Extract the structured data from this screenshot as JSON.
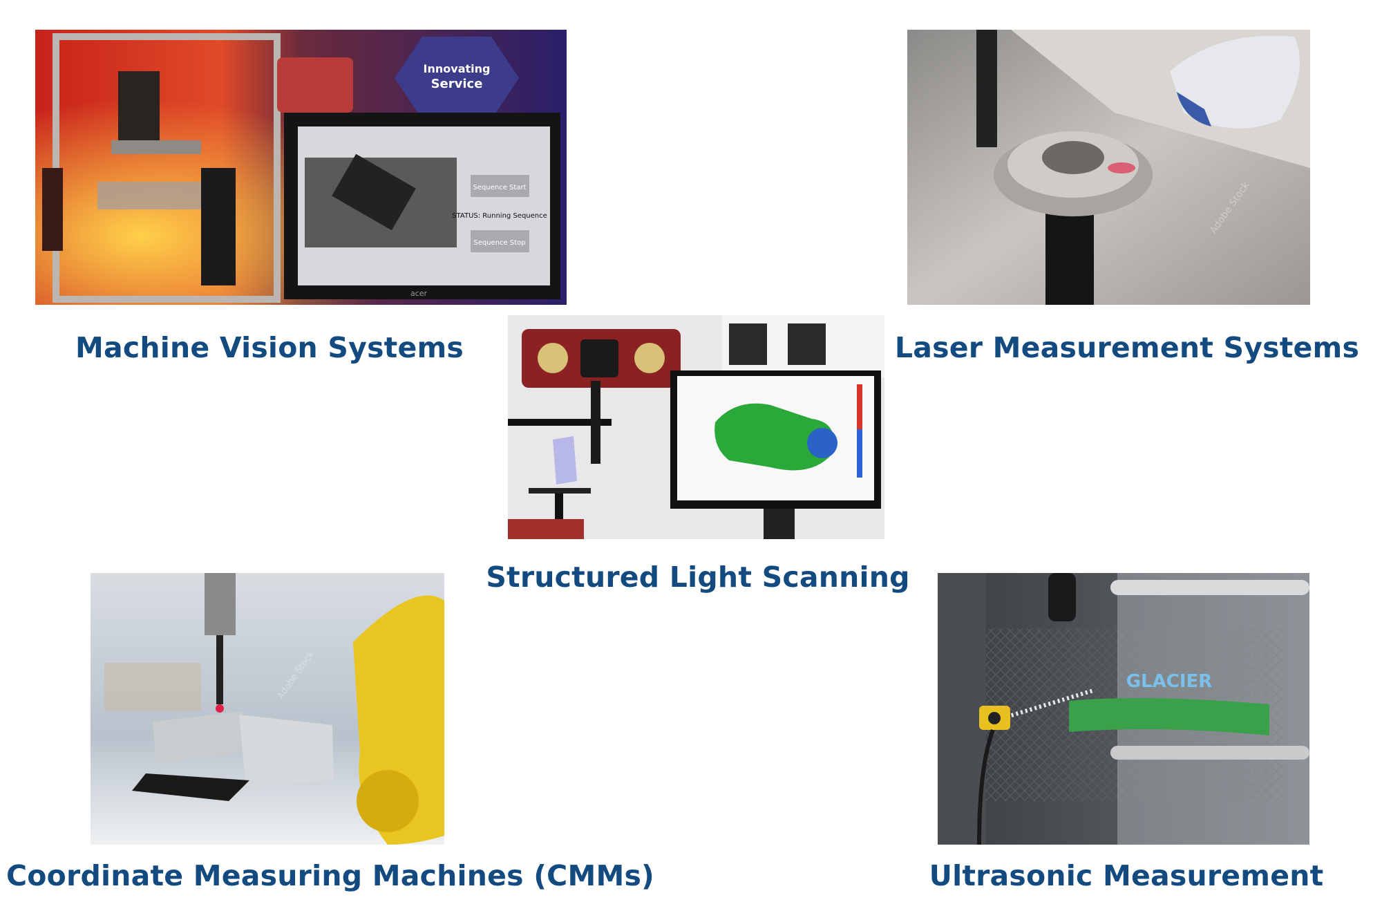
{
  "items": [
    {
      "caption": "Machine Vision Systems",
      "image": "machine-vision-system-photo",
      "screen": {
        "button_start": "Sequence Start",
        "status": "STATUS: Running Sequence",
        "button_stop": "Sequence Stop",
        "monitor_brand": "acer"
      },
      "poster": {
        "title": "Innovating",
        "subtitle": "Service"
      }
    },
    {
      "caption": "Laser Measurement Systems",
      "image": "laser-scanner-gear-photo",
      "watermark": "Adobe Stock"
    },
    {
      "caption": "Structured Light Scanning",
      "image": "structured-light-scanner-photo"
    },
    {
      "caption": "Coordinate Measuring Machines (CMMs)",
      "image": "cmm-probe-robot-arm-photo",
      "watermark": "Adobe Stock"
    },
    {
      "caption": "Ultrasonic Measurement",
      "image": "ultrasonic-sensor-film-photo",
      "label": "GLACIER"
    }
  ],
  "colors": {
    "caption": "#134a80",
    "background": "#ffffff"
  }
}
